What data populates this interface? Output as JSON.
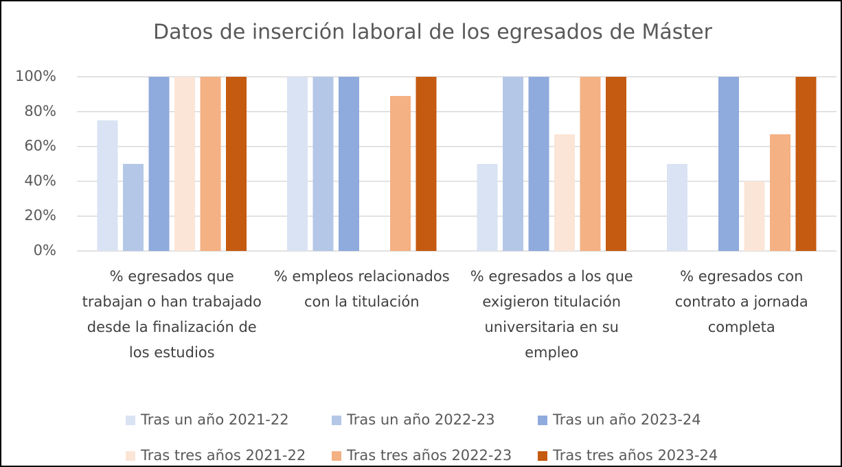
{
  "chart_data": {
    "type": "bar",
    "title": "Datos de inserción laboral de los egresados de Máster",
    "categories": [
      "% egresados que trabajan o han trabajado desde la finalización de los estudios",
      "% empleos relacionados con la titulación",
      "% egresados a los que exigieron titulación universitaria en su empleo",
      "% egresados con contrato a jornada completa"
    ],
    "series": [
      {
        "name": "Tras un año 2021-22",
        "color": "#dae3f3",
        "values": [
          75,
          100,
          50,
          50
        ]
      },
      {
        "name": "Tras un año 2022-23",
        "color": "#b4c7e7",
        "values": [
          50,
          100,
          100,
          0
        ]
      },
      {
        "name": "Tras un año 2023-24",
        "color": "#8faadc",
        "values": [
          100,
          100,
          100,
          100
        ]
      },
      {
        "name": "Tras tres años 2021-22",
        "color": "#fbe5d6",
        "values": [
          100,
          0,
          67,
          40
        ]
      },
      {
        "name": "Tras tres años 2022-23",
        "color": "#f4b183",
        "values": [
          100,
          89,
          100,
          67
        ]
      },
      {
        "name": "Tras tres años 2023-24",
        "color": "#c55a11",
        "values": [
          100,
          100,
          100,
          100
        ]
      }
    ],
    "ylim": [
      0,
      100
    ],
    "yticks": [
      {
        "value": 0,
        "label": "0%"
      },
      {
        "value": 20,
        "label": "20%"
      },
      {
        "value": 40,
        "label": "40%"
      },
      {
        "value": 60,
        "label": "60%"
      },
      {
        "value": 80,
        "label": "80%"
      },
      {
        "value": 100,
        "label": "100%"
      }
    ],
    "grid": true,
    "legend": "bottom"
  }
}
